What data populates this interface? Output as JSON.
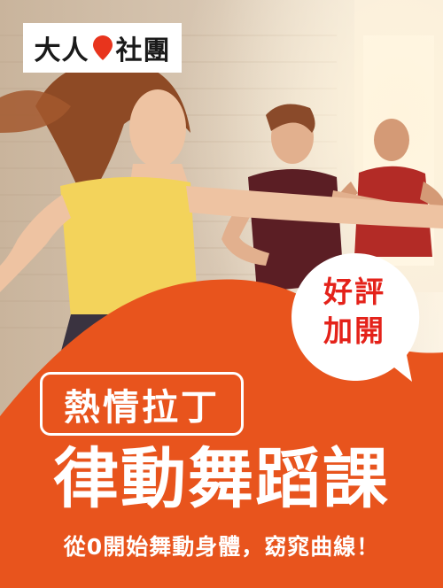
{
  "brand": {
    "name_part1": "大人",
    "name_part2": "社團"
  },
  "badge": {
    "line1": "好評",
    "line2": "加開"
  },
  "subtitle": "熱情拉丁",
  "headline": "律動舞蹈課",
  "tagline": "從0開始舞動身體，窈窕曲線！",
  "colors": {
    "accent": "#e8541d",
    "badge_text": "#e4221a",
    "white": "#ffffff"
  }
}
